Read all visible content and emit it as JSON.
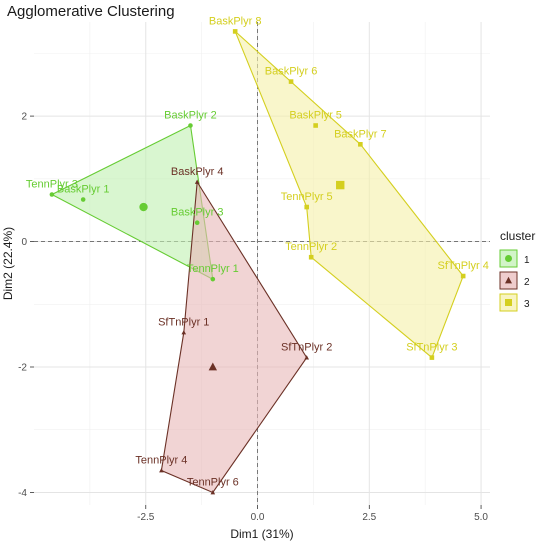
{
  "chart_data": {
    "type": "scatter",
    "title": "Agglomerative Clustering",
    "xlabel": "Dim1 (31%)",
    "ylabel": "Dim2 (22.4%)",
    "xlim": [
      -5,
      5.2
    ],
    "ylim": [
      -4.2,
      3.5
    ],
    "x_ticks": [
      -2.5,
      0.0,
      2.5,
      5.0
    ],
    "x_tick_labels": [
      "-2.5",
      "0.0",
      "2.5",
      "5.0"
    ],
    "y_ticks": [
      -4,
      -2,
      0,
      2
    ],
    "y_tick_labels": [
      "-4",
      "-2",
      "0",
      "2"
    ],
    "grid": true,
    "legend": {
      "title": "cluster",
      "position": "right",
      "entries": [
        "1",
        "2",
        "3"
      ]
    },
    "series": [
      {
        "name": "1",
        "color": "#66cc33",
        "fill": "#bff0b0",
        "marker": "circle",
        "points": [
          {
            "label": "TennPlyr 3",
            "x": -4.6,
            "y": 0.75
          },
          {
            "label": "BaskPlyr 1",
            "x": -3.9,
            "y": 0.67
          },
          {
            "label": "BaskPlyr 2",
            "x": -1.5,
            "y": 1.85
          },
          {
            "label": "BaskPlyr 3",
            "x": -1.35,
            "y": 0.3
          },
          {
            "label": "TennPlyr 1",
            "x": -1.0,
            "y": -0.6
          }
        ],
        "centroid": {
          "x": -2.55,
          "y": 0.55
        }
      },
      {
        "name": "2",
        "color": "#6b3126",
        "fill": "#e8b8b8",
        "marker": "triangle",
        "points": [
          {
            "label": "BaskPlyr 4",
            "x": -1.35,
            "y": 0.95
          },
          {
            "label": "SfTnPlyr 1",
            "x": -1.65,
            "y": -1.45
          },
          {
            "label": "SfTnPlyr 2",
            "x": 1.1,
            "y": -1.85
          },
          {
            "label": "TennPlyr 4",
            "x": -2.15,
            "y": -3.65
          },
          {
            "label": "TennPlyr 6",
            "x": -1.0,
            "y": -4.0
          }
        ],
        "centroid": {
          "x": -1.0,
          "y": -2.0
        }
      },
      {
        "name": "3",
        "color": "#d4cf1f",
        "fill": "#f5f0a8",
        "marker": "square",
        "points": [
          {
            "label": "BaskPlyr 8",
            "x": -0.5,
            "y": 3.35
          },
          {
            "label": "BaskPlyr 6",
            "x": 0.75,
            "y": 2.55
          },
          {
            "label": "BaskPlyr 5",
            "x": 1.3,
            "y": 1.85
          },
          {
            "label": "BaskPlyr 7",
            "x": 2.3,
            "y": 1.55
          },
          {
            "label": "TennPlyr 5",
            "x": 1.1,
            "y": 0.55
          },
          {
            "label": "TennPlyr 2",
            "x": 1.2,
            "y": -0.25
          },
          {
            "label": "SfTnPlyr 4",
            "x": 4.6,
            "y": -0.55
          },
          {
            "label": "SfTnPlyr 3",
            "x": 3.9,
            "y": -1.85
          }
        ],
        "centroid": {
          "x": 1.85,
          "y": 0.9
        }
      }
    ],
    "hulls": {
      "1": [
        "TennPlyr 3",
        "BaskPlyr 2",
        "TennPlyr 1"
      ],
      "2": [
        "BaskPlyr 4",
        "SfTnPlyr 2",
        "TennPlyr 6",
        "TennPlyr 4",
        "SfTnPlyr 1"
      ],
      "3": [
        "BaskPlyr 8",
        "BaskPlyr 7",
        "SfTnPlyr 4",
        "SfTnPlyr 3",
        "TennPlyr 2",
        "TennPlyr 5"
      ]
    }
  }
}
